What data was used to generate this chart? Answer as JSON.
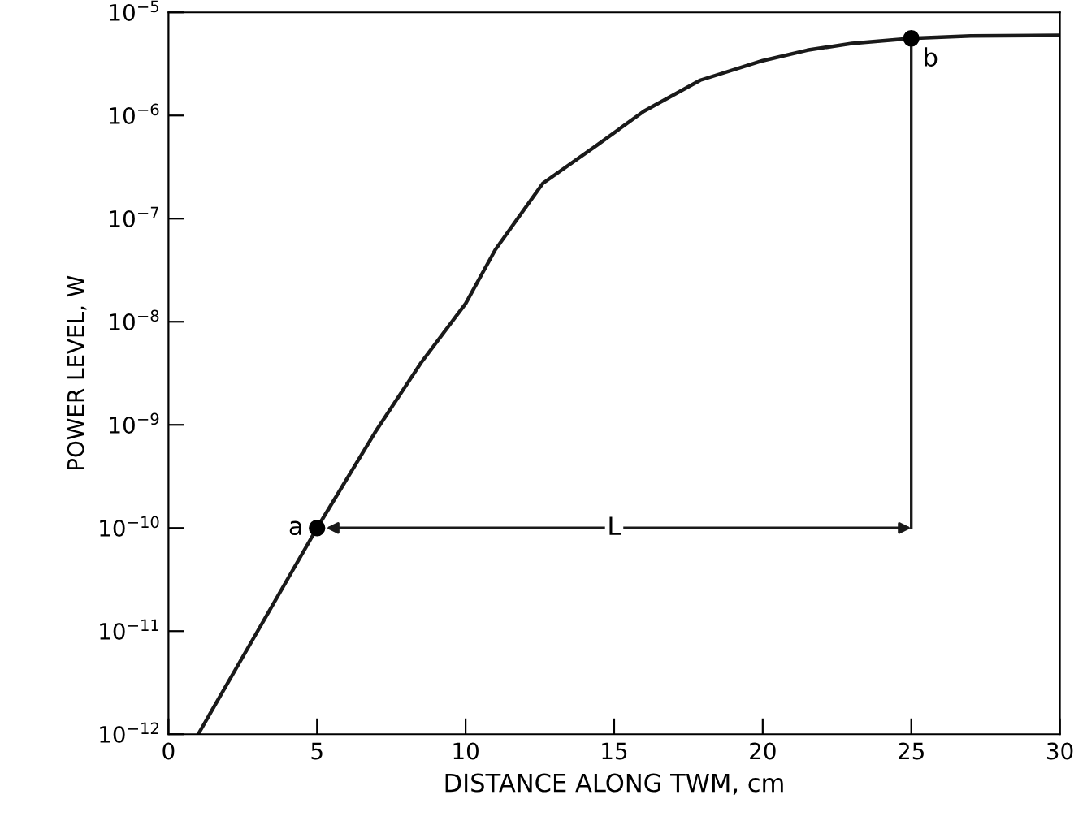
{
  "chart_data": {
    "type": "line",
    "xlabel": "DISTANCE ALONG TWM, cm",
    "ylabel": "POWER LEVEL, W",
    "log": "y",
    "grid": false,
    "legend": false,
    "xlim": [
      0,
      30
    ],
    "xticks": [
      0,
      5,
      10,
      15,
      20,
      25,
      30
    ],
    "ylim": [
      1e-12,
      1e-05
    ],
    "yticks": [
      {
        "value": 1e-12,
        "label": "10$^{−12}$"
      },
      {
        "value": 1e-11,
        "label": "10$^{−11}$"
      },
      {
        "value": 1e-10,
        "label": "10$^{−10}$"
      },
      {
        "value": 1e-09,
        "label": "10$^{−9}$"
      },
      {
        "value": 1e-08,
        "label": "10$^{−8}$"
      },
      {
        "value": 1e-07,
        "label": "10$^{−7}$"
      },
      {
        "value": 1e-06,
        "label": "10$^{−6}$"
      },
      {
        "value": 1e-05,
        "label": "10$^{−5}$"
      }
    ],
    "series": [
      {
        "color": "#1a1a1a",
        "marker": "none",
        "line_style": "solid",
        "x": [
          1,
          3,
          5,
          7,
          8.5,
          10,
          11,
          12.6,
          14.4,
          16,
          17.9,
          20,
          21.5,
          23,
          25,
          27,
          30
        ],
        "values": [
          1e-12,
          1e-11,
          1e-10,
          8.9e-10,
          4e-09,
          1.5e-08,
          5e-08,
          2.2e-07,
          5.1e-07,
          1.1e-06,
          2.2e-06,
          3.4e-06,
          4.3e-06,
          5e-06,
          5.6e-06,
          5.9e-06,
          6e-06
        ]
      },
      {
        "type": "scatter",
        "color": "#000000",
        "marker": "circle",
        "x": [
          5,
          25
        ],
        "values": [
          1e-10,
          5.6e-06
        ]
      }
    ],
    "annotations": [
      {
        "text": "a",
        "x": 5,
        "y": 1e-10
      },
      {
        "text": "b",
        "x": 25,
        "y": 5.6e-06
      },
      {
        "text": "L",
        "x": 15,
        "y": 1e-10
      }
    ]
  }
}
